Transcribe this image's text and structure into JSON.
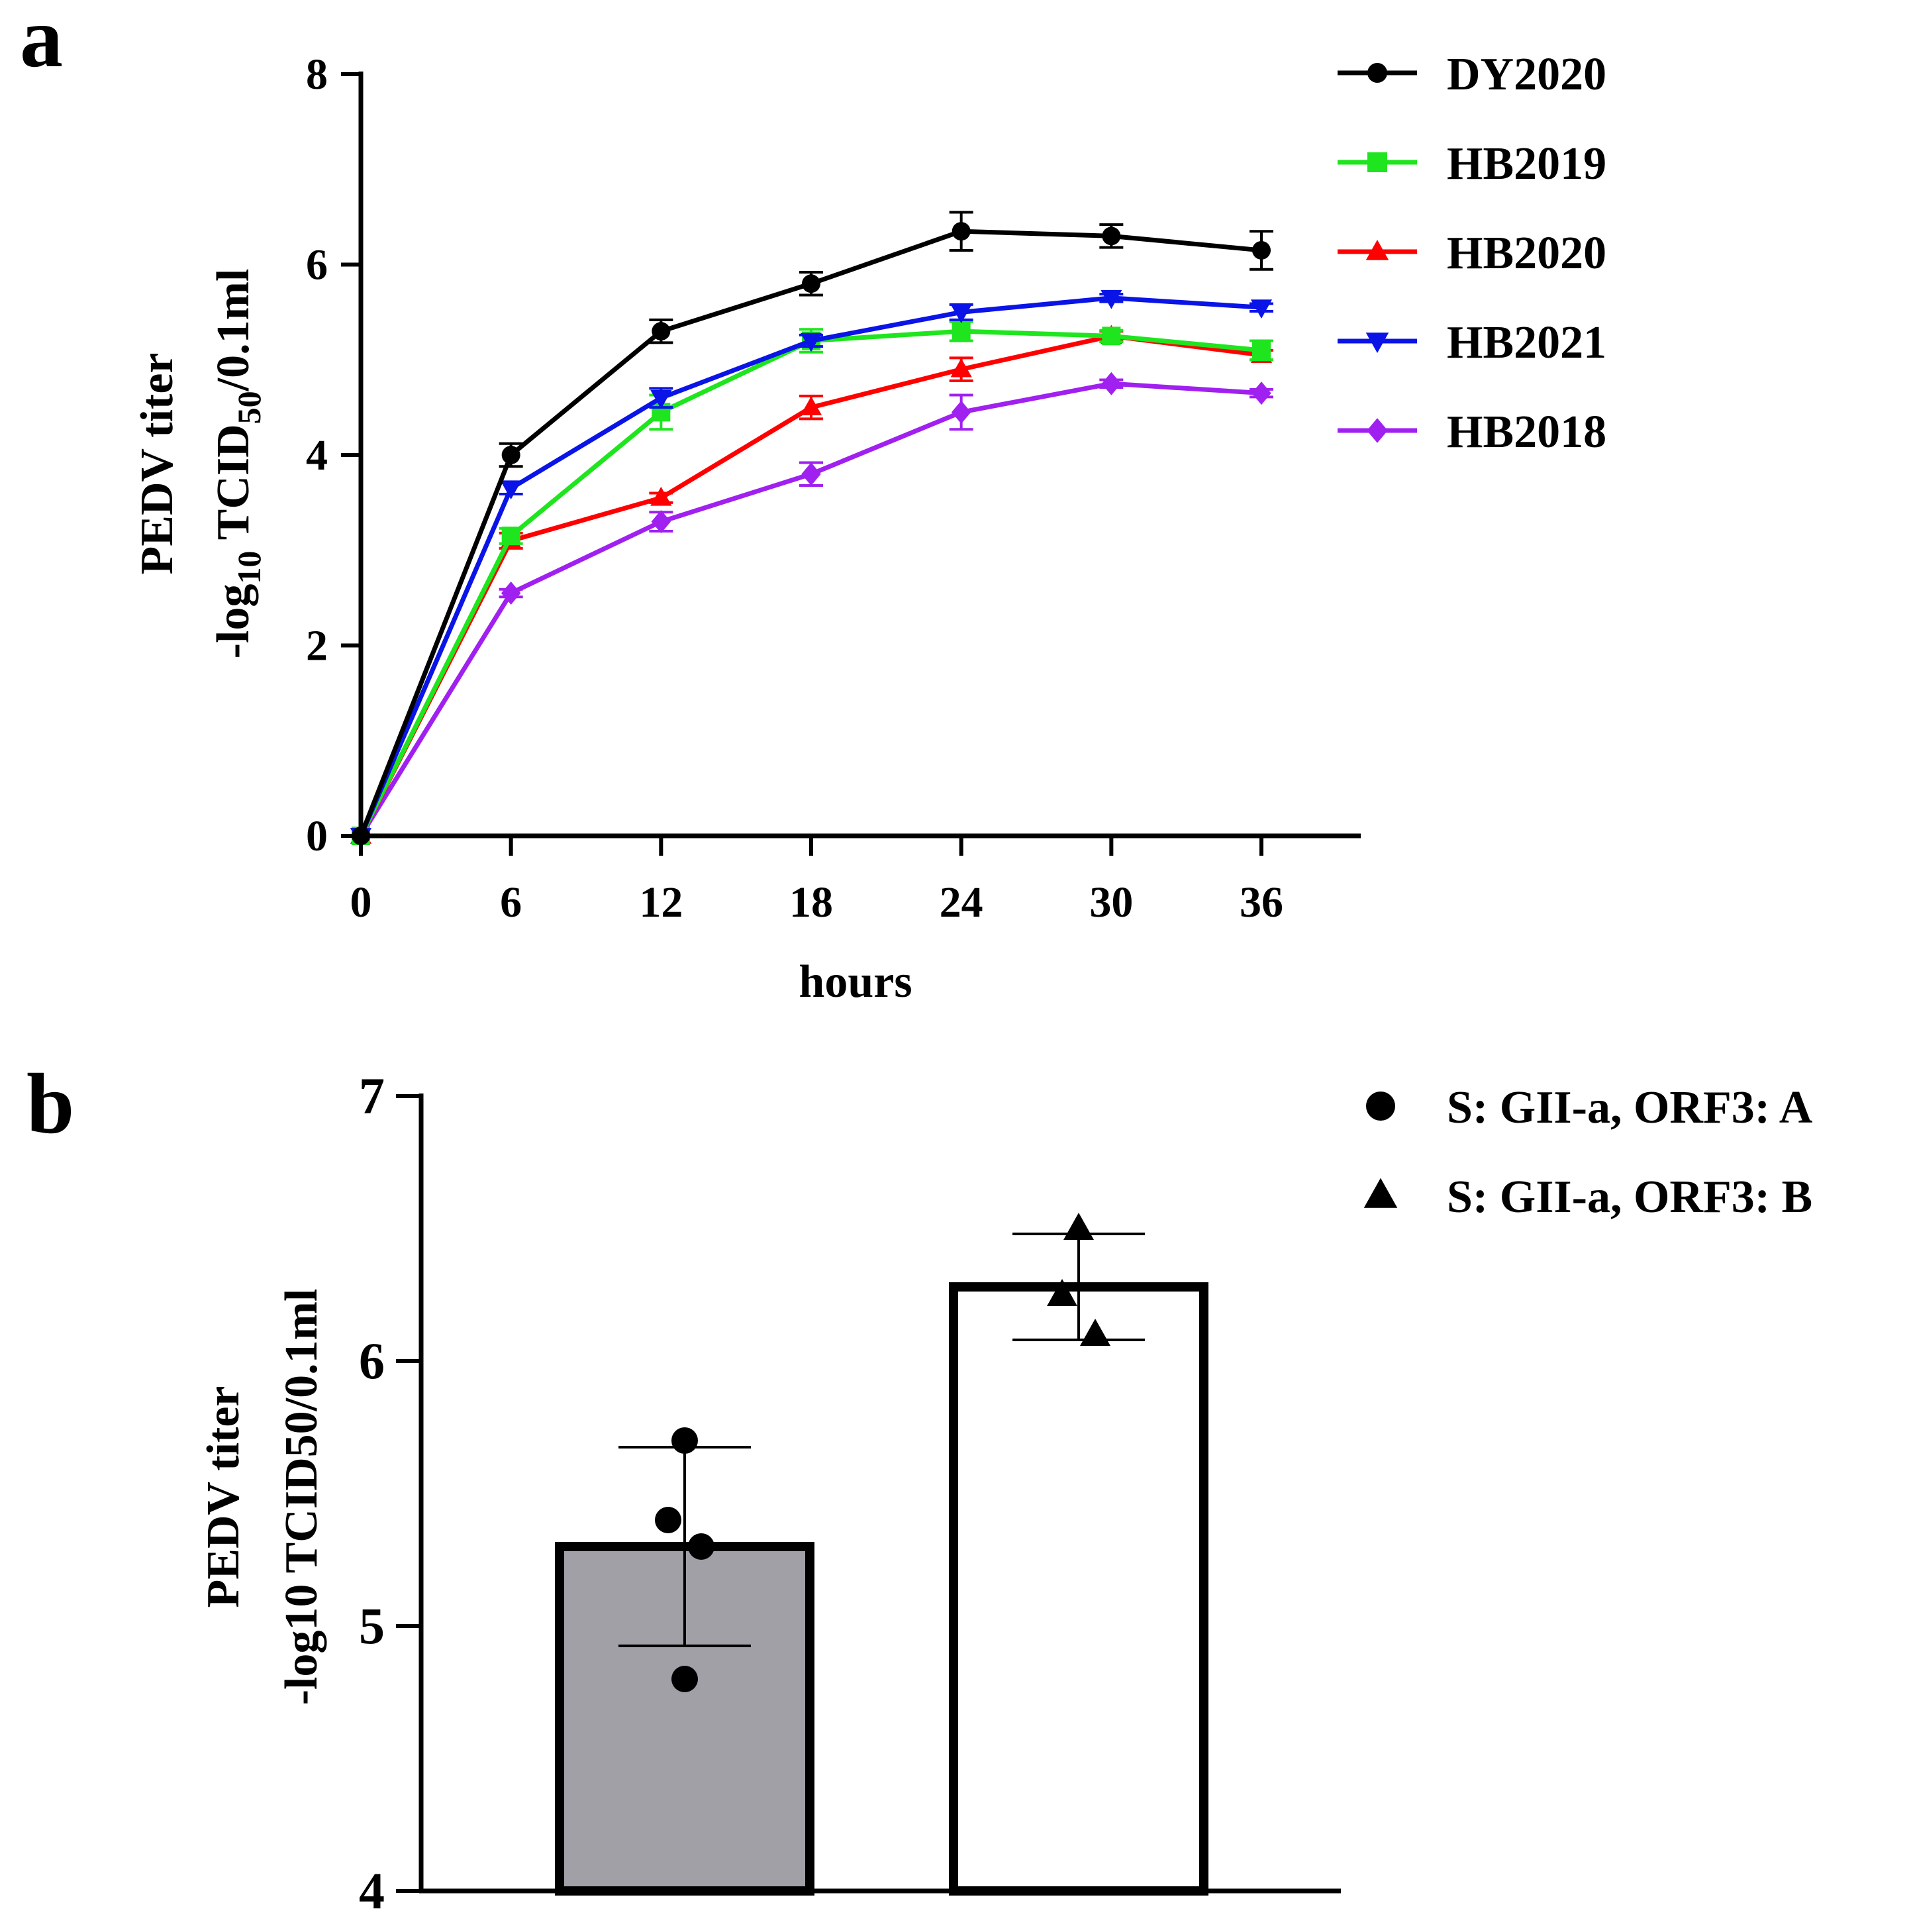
{
  "chart_data": [
    {
      "panel": "a",
      "type": "line",
      "xlabel": "hours",
      "ylabel_line1": "PEDV titer",
      "ylabel_line2_parts": {
        "pre": "-log",
        "sub1": "10",
        "mid": " TCID",
        "sub2": "50",
        "post": "/0.1ml"
      },
      "x": [
        0,
        6,
        12,
        18,
        24,
        30,
        36
      ],
      "xticks": [
        "0",
        "6",
        "12",
        "18",
        "24",
        "30",
        "36"
      ],
      "xlim": [
        0,
        40
      ],
      "yticks": [
        "0",
        "2",
        "4",
        "6",
        "8"
      ],
      "ylim": [
        0,
        8
      ],
      "legend_position": "top-right",
      "series": [
        {
          "name": "DY2020",
          "color": "#000000",
          "marker": "circle",
          "values": [
            0,
            4.0,
            5.3,
            5.8,
            6.35,
            6.3,
            6.15
          ],
          "errors": [
            0,
            0.12,
            0.12,
            0.12,
            0.2,
            0.12,
            0.2
          ]
        },
        {
          "name": "HB2019",
          "color": "#1ee51e",
          "marker": "square",
          "values": [
            0,
            3.15,
            4.45,
            5.2,
            5.3,
            5.25,
            5.1
          ],
          "errors": [
            0,
            0.08,
            0.18,
            0.12,
            0.1,
            0.06,
            0.1
          ]
        },
        {
          "name": "HB2020",
          "color": "#ff0000",
          "marker": "triangle-up",
          "values": [
            0,
            3.1,
            3.55,
            4.5,
            4.9,
            5.25,
            5.05
          ],
          "errors": [
            0,
            0.08,
            0.05,
            0.12,
            0.12,
            0.05,
            0.05
          ]
        },
        {
          "name": "HB2021",
          "color": "#0a14e6",
          "marker": "triangle-down",
          "values": [
            0,
            3.65,
            4.6,
            5.2,
            5.5,
            5.65,
            5.55
          ],
          "errors": [
            0,
            0.06,
            0.1,
            0.06,
            0.08,
            0.04,
            0.04
          ]
        },
        {
          "name": "HB2018",
          "color": "#a020f0",
          "marker": "diamond",
          "values": [
            0,
            2.55,
            3.3,
            3.8,
            4.45,
            4.75,
            4.65
          ],
          "errors": [
            0,
            0.04,
            0.1,
            0.12,
            0.18,
            0.04,
            0.04
          ]
        }
      ]
    },
    {
      "panel": "b",
      "type": "bar",
      "ylabel_line1": "PEDV titer",
      "ylabel_line2": "-log10 TCID50/0.1ml",
      "yticks": [
        "4",
        "5",
        "6",
        "7"
      ],
      "ylim": [
        4,
        7
      ],
      "legend_position": "top-right",
      "bars": [
        {
          "name": "S: GII-a, ORF3: A",
          "marker": "circle",
          "fill": "#a0a0a6",
          "mean": 5.3,
          "error": 0.375,
          "points": [
            5.7,
            5.4,
            5.3,
            4.8
          ]
        },
        {
          "name": "S: GII-a, ORF3: B",
          "marker": "triangle-up",
          "fill": "#ffffff",
          "mean": 6.28,
          "error": 0.2,
          "points": [
            6.5,
            6.25,
            6.1
          ]
        }
      ]
    }
  ]
}
